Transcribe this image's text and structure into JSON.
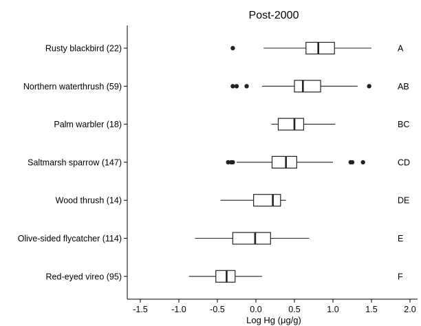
{
  "chart_data": {
    "type": "boxplot",
    "title": "Post-2000",
    "xlabel": "Log Hg (μg/g)",
    "ylabel": "",
    "xlim": [
      -1.65,
      2.05
    ],
    "x_ticks": [
      "-1.5",
      "-1.0",
      "-0.5",
      "0.0",
      "0.5",
      "1.0",
      "1.5",
      "2.0"
    ],
    "x_tick_values": [
      -1.5,
      -1.0,
      -0.5,
      0.0,
      0.5,
      1.0,
      1.5,
      2.0
    ],
    "grid": false,
    "categories": [
      {
        "label": "Rusty blackbird (22)",
        "group": "A",
        "min": 0.1,
        "q1": 0.65,
        "median": 0.81,
        "q3": 1.02,
        "max": 1.5,
        "outliers": [
          -0.3
        ]
      },
      {
        "label": "Northern waterthrush (59)",
        "group": "AB",
        "min": 0.08,
        "q1": 0.5,
        "median": 0.61,
        "q3": 0.84,
        "max": 1.32,
        "outliers": [
          -0.3,
          -0.25,
          -0.12,
          1.47
        ]
      },
      {
        "label": "Palm warbler (18)",
        "group": "BC",
        "min": 0.2,
        "q1": 0.29,
        "median": 0.5,
        "q3": 0.62,
        "max": 1.03,
        "outliers": []
      },
      {
        "label": "Saltmarsh sparrow (147)",
        "group": "CD",
        "min": -0.25,
        "q1": 0.21,
        "median": 0.39,
        "q3": 0.53,
        "max": 1.0,
        "outliers": [
          -0.36,
          -0.32,
          -0.3,
          1.23,
          1.25,
          1.39
        ]
      },
      {
        "label": "Wood thrush (14)",
        "group": "DE",
        "min": -0.46,
        "q1": -0.03,
        "median": 0.22,
        "q3": 0.32,
        "max": 0.39,
        "outliers": []
      },
      {
        "label": "Olive-sided flycatcher (114)",
        "group": "E",
        "min": -0.79,
        "q1": -0.3,
        "median": -0.01,
        "q3": 0.19,
        "max": 0.69,
        "outliers": []
      },
      {
        "label": "Red-eyed vireo (95)",
        "group": "F",
        "min": -0.87,
        "q1": -0.52,
        "median": -0.38,
        "q3": -0.27,
        "max": 0.08,
        "outliers": []
      }
    ]
  }
}
